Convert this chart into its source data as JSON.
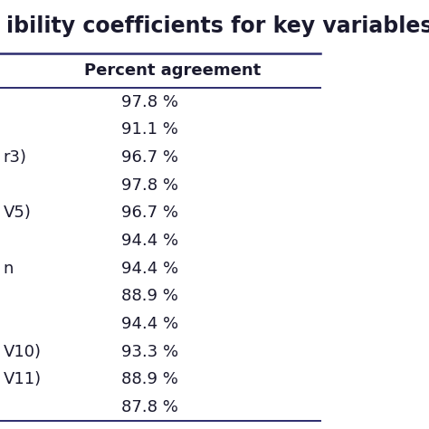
{
  "title": "ibility coefficients for key variables.",
  "col_header": "Percent agreement",
  "row_labels": [
    "",
    "",
    "r3)",
    "",
    "V5)",
    "",
    "n",
    "",
    "",
    "V10)",
    "V11)",
    ""
  ],
  "values": [
    "97.8 %",
    "91.1 %",
    "96.7 %",
    "97.8 %",
    "96.7 %",
    "94.4 %",
    "94.4 %",
    "88.9 %",
    "94.4 %",
    "93.3 %",
    "88.9 %",
    "87.8 %"
  ],
  "background_color": "#ffffff",
  "text_color": "#1a1a2e",
  "line_color": "#2c2c6e",
  "title_fontsize": 17,
  "header_fontsize": 13,
  "cell_fontsize": 13
}
